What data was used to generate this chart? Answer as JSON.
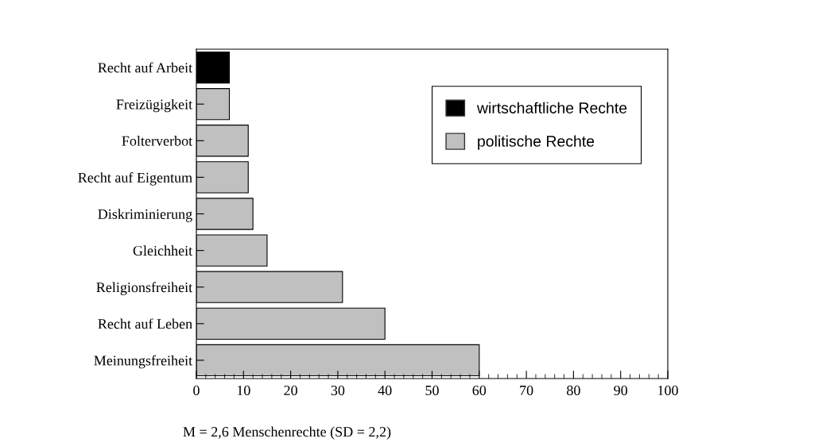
{
  "chart_data": {
    "type": "bar",
    "orientation": "horizontal",
    "categories": [
      "Recht auf Arbeit",
      "Freizügigkeit",
      "Folterverbot",
      "Recht auf Eigentum",
      "Diskriminierung",
      "Gleichheit",
      "Religionsfreiheit",
      "Recht auf Leben",
      "Meinungsfreiheit"
    ],
    "series": [
      {
        "name": "wirtschaftliche Rechte",
        "color": "#000000",
        "values": [
          7,
          null,
          null,
          null,
          null,
          null,
          null,
          null,
          null
        ]
      },
      {
        "name": "politische Rechte",
        "color": "#c0c0c0",
        "values": [
          null,
          7,
          11,
          11,
          12,
          15,
          31,
          40,
          60
        ]
      }
    ],
    "xlim": [
      0,
      100
    ],
    "xticks": [
      0,
      {
        "value": 2,
        "label": null
      },
      {
        "value": 4,
        "label": null
      },
      {
        "value": 6,
        "label": null
      },
      {
        "value": 8,
        "label": null
      },
      10,
      {
        "value": 12,
        "label": null
      },
      {
        "value": 14,
        "label": null
      },
      {
        "value": 16,
        "label": null
      },
      {
        "value": 18,
        "label": null
      },
      20,
      {
        "value": 22,
        "label": null
      },
      {
        "value": 24,
        "label": null
      },
      {
        "value": 26,
        "label": null
      },
      {
        "value": 28,
        "label": null
      },
      30,
      {
        "value": 32,
        "label": null
      },
      {
        "value": 34,
        "label": null
      },
      {
        "value": 36,
        "label": null
      },
      {
        "value": 38,
        "label": null
      },
      40,
      {
        "value": 42,
        "label": null
      },
      {
        "value": 44,
        "label": null
      },
      {
        "value": 46,
        "label": null
      },
      {
        "value": 48,
        "label": null
      },
      50,
      {
        "value": 52,
        "label": null
      },
      {
        "value": 54,
        "label": null
      },
      {
        "value": 56,
        "label": null
      },
      {
        "value": 58,
        "label": null
      },
      60,
      {
        "value": 62,
        "label": null
      },
      {
        "value": 64,
        "label": null
      },
      {
        "value": 66,
        "label": null
      },
      {
        "value": 68,
        "label": null
      },
      70,
      {
        "value": 72,
        "label": null
      },
      {
        "value": 74,
        "label": null
      },
      {
        "value": 76,
        "label": null
      },
      {
        "value": 78,
        "label": null
      },
      80,
      {
        "value": 82,
        "label": null
      },
      {
        "value": 84,
        "label": null
      },
      {
        "value": 86,
        "label": null
      },
      {
        "value": 88,
        "label": null
      },
      90,
      {
        "value": 92,
        "label": null
      },
      {
        "value": 94,
        "label": null
      },
      {
        "value": 96,
        "label": null
      },
      {
        "value": 98,
        "label": null
      },
      100
    ],
    "annotations": [
      "M = 2,6 Menschenrechte (SD = 2,2)"
    ],
    "legend": "right",
    "grid": false
  }
}
